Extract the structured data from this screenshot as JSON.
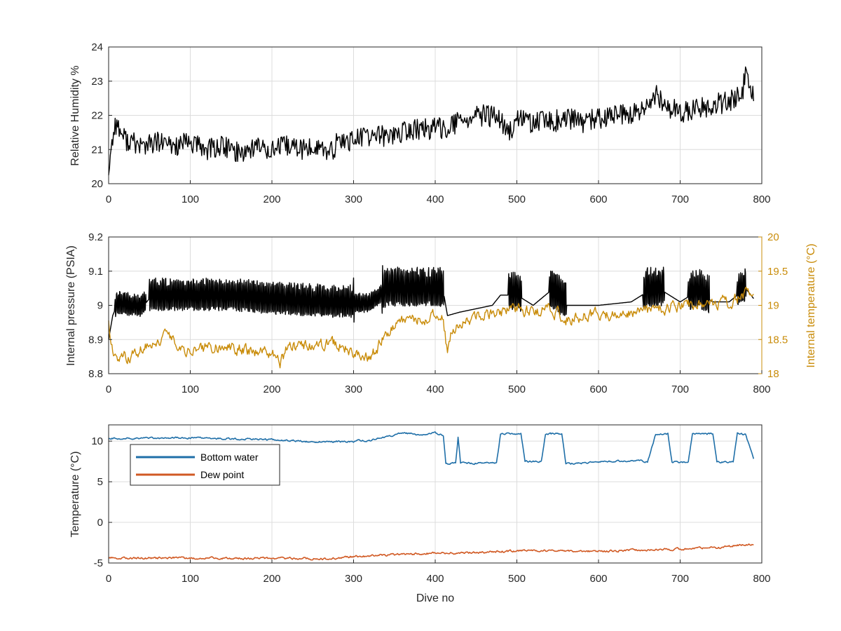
{
  "chart_data": [
    {
      "type": "line",
      "xlabel": "",
      "ylabel": "Relative Humidity %",
      "xlim": [
        0,
        800
      ],
      "ylim": [
        20,
        24
      ],
      "xticks": [
        "0",
        "100",
        "200",
        "300",
        "400",
        "500",
        "600",
        "700",
        "800"
      ],
      "yticks": [
        "20",
        "21",
        "22",
        "23",
        "24"
      ],
      "grid": true,
      "series": [
        {
          "color": "#000000",
          "x": [
            0,
            3,
            8,
            20,
            40,
            60,
            80,
            100,
            120,
            140,
            160,
            180,
            200,
            220,
            240,
            260,
            270,
            280,
            300,
            320,
            340,
            360,
            380,
            400,
            420,
            440,
            460,
            480,
            490,
            500,
            520,
            540,
            560,
            580,
            600,
            620,
            640,
            660,
            670,
            680,
            700,
            720,
            740,
            760,
            775,
            780,
            790
          ],
          "y": [
            20.4,
            21.0,
            21.8,
            21.3,
            21.1,
            21.2,
            21.1,
            21.2,
            21.0,
            21.1,
            20.9,
            21.1,
            21.0,
            21.1,
            21.0,
            21.1,
            20.8,
            21.2,
            21.3,
            21.4,
            21.4,
            21.5,
            21.6,
            21.6,
            21.7,
            21.9,
            22.0,
            21.9,
            21.4,
            21.9,
            21.8,
            21.8,
            21.9,
            21.8,
            21.9,
            22.0,
            22.0,
            22.2,
            22.6,
            22.3,
            22.1,
            22.2,
            22.3,
            22.4,
            22.6,
            23.1,
            22.5
          ],
          "noise": 0.32
        }
      ]
    },
    {
      "type": "line",
      "xlabel": "",
      "ylabel": "Internal pressure (PSIA)",
      "y2label": "Internal temperature (°C)",
      "xlim": [
        0,
        800
      ],
      "ylim": [
        8.8,
        9.2
      ],
      "y2lim": [
        18,
        20
      ],
      "xticks": [
        "0",
        "100",
        "200",
        "300",
        "400",
        "500",
        "600",
        "700",
        "800"
      ],
      "yticks": [
        "8.8",
        "8.9",
        "9",
        "9.1",
        "9.2"
      ],
      "y2ticks": [
        "18",
        "18.5",
        "19",
        "19.5",
        "20"
      ],
      "grid": true,
      "series": [
        {
          "axis": "left",
          "color": "#000000",
          "x": [
            0,
            5,
            10,
            40,
            50,
            100,
            150,
            200,
            280,
            290,
            320,
            330,
            340,
            380,
            410,
            415,
            430,
            450,
            470,
            480,
            500,
            520,
            540,
            560,
            600,
            640,
            660,
            680,
            700,
            720,
            740,
            760,
            780,
            790
          ],
          "y": [
            8.9,
            8.97,
            9.0,
            8.99,
            9.02,
            9.02,
            9.02,
            9.01,
            9.0,
            9.0,
            9.0,
            9.02,
            9.04,
            9.04,
            9.04,
            8.97,
            8.98,
            8.99,
            9.0,
            9.03,
            9.03,
            9.0,
            9.04,
            9.0,
            9.0,
            9.01,
            9.04,
            9.04,
            9.01,
            9.04,
            9.01,
            9.01,
            9.05,
            9.02
          ],
          "oscillation": [
            [
              8,
              45,
              0.035
            ],
            [
              50,
              300,
              0.05
            ],
            [
              300,
              335,
              0.03
            ],
            [
              335,
              410,
              0.06
            ],
            [
              490,
              505,
              0.06
            ],
            [
              540,
              560,
              0.06
            ],
            [
              655,
              680,
              0.06
            ],
            [
              710,
              735,
              0.06
            ],
            [
              770,
              780,
              0.05
            ]
          ]
        },
        {
          "axis": "right",
          "color": "#c98c0a",
          "x": [
            0,
            5,
            10,
            30,
            60,
            70,
            80,
            100,
            140,
            200,
            210,
            220,
            280,
            300,
            310,
            320,
            340,
            360,
            380,
            400,
            410,
            415,
            420,
            440,
            460,
            480,
            500,
            520,
            540,
            560,
            580,
            600,
            620,
            640,
            660,
            680,
            700,
            720,
            740,
            760,
            780,
            790
          ],
          "y": [
            18.8,
            18.3,
            18.2,
            18.3,
            18.5,
            18.55,
            18.45,
            18.35,
            18.4,
            18.3,
            18.15,
            18.4,
            18.45,
            18.3,
            18.3,
            18.2,
            18.6,
            18.75,
            18.8,
            18.85,
            18.8,
            18.3,
            18.6,
            18.8,
            18.9,
            18.9,
            18.95,
            18.9,
            18.95,
            18.8,
            18.85,
            18.9,
            18.85,
            18.9,
            18.9,
            18.95,
            19.0,
            19.0,
            19.05,
            19.05,
            19.15,
            19.05
          ],
          "noise": 0.1
        }
      ]
    },
    {
      "type": "line",
      "xlabel": "Dive no",
      "ylabel": "Temperature (°C)",
      "xlim": [
        0,
        800
      ],
      "ylim": [
        -5,
        12
      ],
      "xticks": [
        "0",
        "100",
        "200",
        "300",
        "400",
        "500",
        "600",
        "700",
        "800"
      ],
      "yticks": [
        "-5",
        "0",
        "5",
        "10"
      ],
      "grid": true,
      "legend": "top-left",
      "series": [
        {
          "name": "Bottom water",
          "color": "#1f6fa8",
          "x": [
            0,
            100,
            200,
            250,
            300,
            320,
            340,
            360,
            380,
            400,
            410,
            413,
            425,
            428,
            431,
            434,
            460,
            475,
            480,
            485,
            500,
            505,
            510,
            530,
            535,
            540,
            555,
            560,
            565,
            600,
            650,
            660,
            670,
            680,
            685,
            690,
            710,
            715,
            725,
            740,
            745,
            750,
            765,
            770,
            780,
            790
          ],
          "y": [
            10.3,
            10.4,
            10.2,
            9.9,
            10.0,
            10.1,
            10.5,
            11.0,
            10.8,
            11.0,
            10.7,
            7.2,
            7.3,
            10.5,
            7.3,
            7.3,
            7.3,
            7.3,
            10.8,
            10.9,
            10.9,
            10.9,
            7.5,
            7.5,
            10.8,
            10.9,
            10.9,
            7.3,
            7.2,
            7.5,
            7.6,
            7.4,
            10.8,
            10.9,
            10.9,
            7.4,
            7.4,
            10.8,
            10.9,
            10.9,
            7.4,
            7.4,
            7.4,
            11.0,
            10.8,
            7.8
          ],
          "noise": 0.12
        },
        {
          "name": "Dew point",
          "color": "#d15a24",
          "x": [
            0,
            100,
            200,
            270,
            300,
            350,
            400,
            450,
            500,
            550,
            600,
            650,
            700,
            750,
            780,
            790
          ],
          "y": [
            -4.4,
            -4.4,
            -4.4,
            -4.5,
            -4.2,
            -4.0,
            -3.8,
            -3.7,
            -3.5,
            -3.5,
            -3.6,
            -3.4,
            -3.3,
            -3.1,
            -2.7,
            -2.8
          ],
          "noise": 0.15
        }
      ]
    }
  ]
}
